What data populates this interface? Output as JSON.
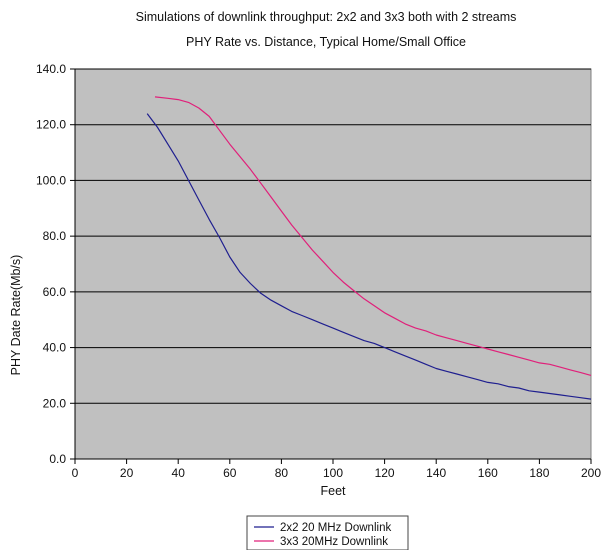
{
  "chart_data": {
    "type": "line",
    "title": "Simulations of downlink throughput:  2x2 and 3x3 both with 2 streams",
    "subtitle": "PHY Rate vs. Distance, Typical Home/Small Office",
    "xlabel": "Feet",
    "ylabel": "PHY Date Rate(Mb/s)",
    "xlim": [
      0,
      200
    ],
    "ylim": [
      0,
      140
    ],
    "x_ticks": [
      "0",
      "20",
      "40",
      "60",
      "80",
      "100",
      "120",
      "140",
      "160",
      "180",
      "200"
    ],
    "y_ticks": [
      "0.0",
      "20.0",
      "40.0",
      "60.0",
      "80.0",
      "100.0",
      "120.0",
      "140.0"
    ],
    "grid": "horizontal",
    "plot_background": "#C0C0C0",
    "legend_position": "bottom",
    "series": [
      {
        "name": "2x2 20 MHz Downlink",
        "color": "#1F1F8F",
        "points": [
          [
            28,
            124
          ],
          [
            32,
            119
          ],
          [
            36,
            113
          ],
          [
            40,
            107
          ],
          [
            44,
            100
          ],
          [
            48,
            93
          ],
          [
            52,
            86
          ],
          [
            56,
            79.5
          ],
          [
            60,
            72.5
          ],
          [
            64,
            67
          ],
          [
            68,
            63
          ],
          [
            72,
            59.5
          ],
          [
            76,
            57
          ],
          [
            80,
            55
          ],
          [
            84,
            53
          ],
          [
            88,
            51.5
          ],
          [
            92,
            50
          ],
          [
            96,
            48.5
          ],
          [
            100,
            47
          ],
          [
            104,
            45.5
          ],
          [
            108,
            44
          ],
          [
            112,
            42.5
          ],
          [
            116,
            41.5
          ],
          [
            120,
            40
          ],
          [
            124,
            38.5
          ],
          [
            128,
            37
          ],
          [
            132,
            35.5
          ],
          [
            136,
            34
          ],
          [
            140,
            32.5
          ],
          [
            144,
            31.5
          ],
          [
            148,
            30.5
          ],
          [
            152,
            29.5
          ],
          [
            156,
            28.5
          ],
          [
            160,
            27.5
          ],
          [
            164,
            27
          ],
          [
            168,
            26
          ],
          [
            172,
            25.5
          ],
          [
            176,
            24.5
          ],
          [
            180,
            24
          ],
          [
            184,
            23.5
          ],
          [
            188,
            23
          ],
          [
            192,
            22.5
          ],
          [
            196,
            22
          ],
          [
            200,
            21.5
          ]
        ]
      },
      {
        "name": "3x3 20MHz Downlink",
        "color": "#E0207A",
        "points": [
          [
            31,
            130
          ],
          [
            36,
            129.5
          ],
          [
            40,
            129
          ],
          [
            44,
            128
          ],
          [
            48,
            126
          ],
          [
            52,
            123
          ],
          [
            56,
            118
          ],
          [
            60,
            113
          ],
          [
            64,
            108.5
          ],
          [
            68,
            104
          ],
          [
            72,
            99
          ],
          [
            76,
            94
          ],
          [
            80,
            89
          ],
          [
            84,
            84
          ],
          [
            88,
            79.5
          ],
          [
            92,
            75
          ],
          [
            96,
            71
          ],
          [
            100,
            67
          ],
          [
            104,
            63.5
          ],
          [
            108,
            60.5
          ],
          [
            112,
            57.5
          ],
          [
            116,
            55
          ],
          [
            120,
            52.5
          ],
          [
            124,
            50.5
          ],
          [
            128,
            48.5
          ],
          [
            132,
            47
          ],
          [
            136,
            46
          ],
          [
            140,
            44.5
          ],
          [
            144,
            43.5
          ],
          [
            148,
            42.5
          ],
          [
            152,
            41.5
          ],
          [
            156,
            40.5
          ],
          [
            160,
            39.5
          ],
          [
            164,
            38.5
          ],
          [
            168,
            37.5
          ],
          [
            172,
            36.5
          ],
          [
            176,
            35.5
          ],
          [
            180,
            34.5
          ],
          [
            184,
            34
          ],
          [
            188,
            33
          ],
          [
            192,
            32
          ],
          [
            196,
            31
          ],
          [
            200,
            30
          ]
        ]
      }
    ]
  }
}
